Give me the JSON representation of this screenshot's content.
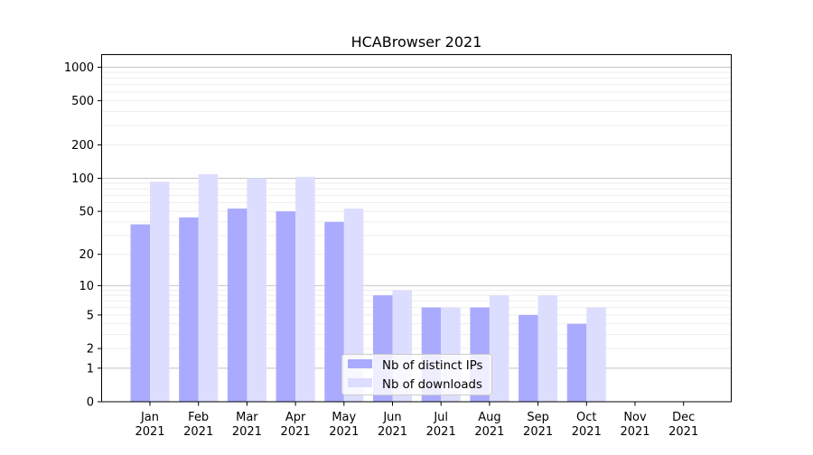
{
  "chart_data": {
    "type": "bar",
    "title": "HCABrowser 2021",
    "xlabel": "",
    "ylabel": "",
    "y_scale": "symlog (log10(v+1))",
    "ylim": [
      0,
      1300
    ],
    "grid": true,
    "legend_placement": "lower center",
    "categories": [
      "Jan\n2021",
      "Feb\n2021",
      "Mar\n2021",
      "Apr\n2021",
      "May\n2021",
      "Jun\n2021",
      "Jul\n2021",
      "Aug\n2021",
      "Sep\n2021",
      "Oct\n2021",
      "Nov\n2021",
      "Dec\n2021"
    ],
    "category_labels": [
      [
        "Jan",
        "2021"
      ],
      [
        "Feb",
        "2021"
      ],
      [
        "Mar",
        "2021"
      ],
      [
        "Apr",
        "2021"
      ],
      [
        "May",
        "2021"
      ],
      [
        "Jun",
        "2021"
      ],
      [
        "Jul",
        "2021"
      ],
      [
        "Aug",
        "2021"
      ],
      [
        "Sep",
        "2021"
      ],
      [
        "Oct",
        "2021"
      ],
      [
        "Nov",
        "2021"
      ],
      [
        "Dec",
        "2021"
      ]
    ],
    "y_ticks": [
      0,
      1,
      2,
      5,
      10,
      20,
      50,
      100,
      200,
      500,
      1000
    ],
    "series": [
      {
        "name": "Nb of distinct IPs",
        "color": "#aaaaff",
        "values": [
          38,
          44,
          53,
          50,
          40,
          8,
          6,
          6,
          5,
          4,
          0,
          0
        ]
      },
      {
        "name": "Nb of downloads",
        "color": "#ddddff",
        "values": [
          93,
          109,
          100,
          103,
          53,
          9,
          6,
          8,
          8,
          6,
          0,
          0
        ]
      }
    ]
  }
}
